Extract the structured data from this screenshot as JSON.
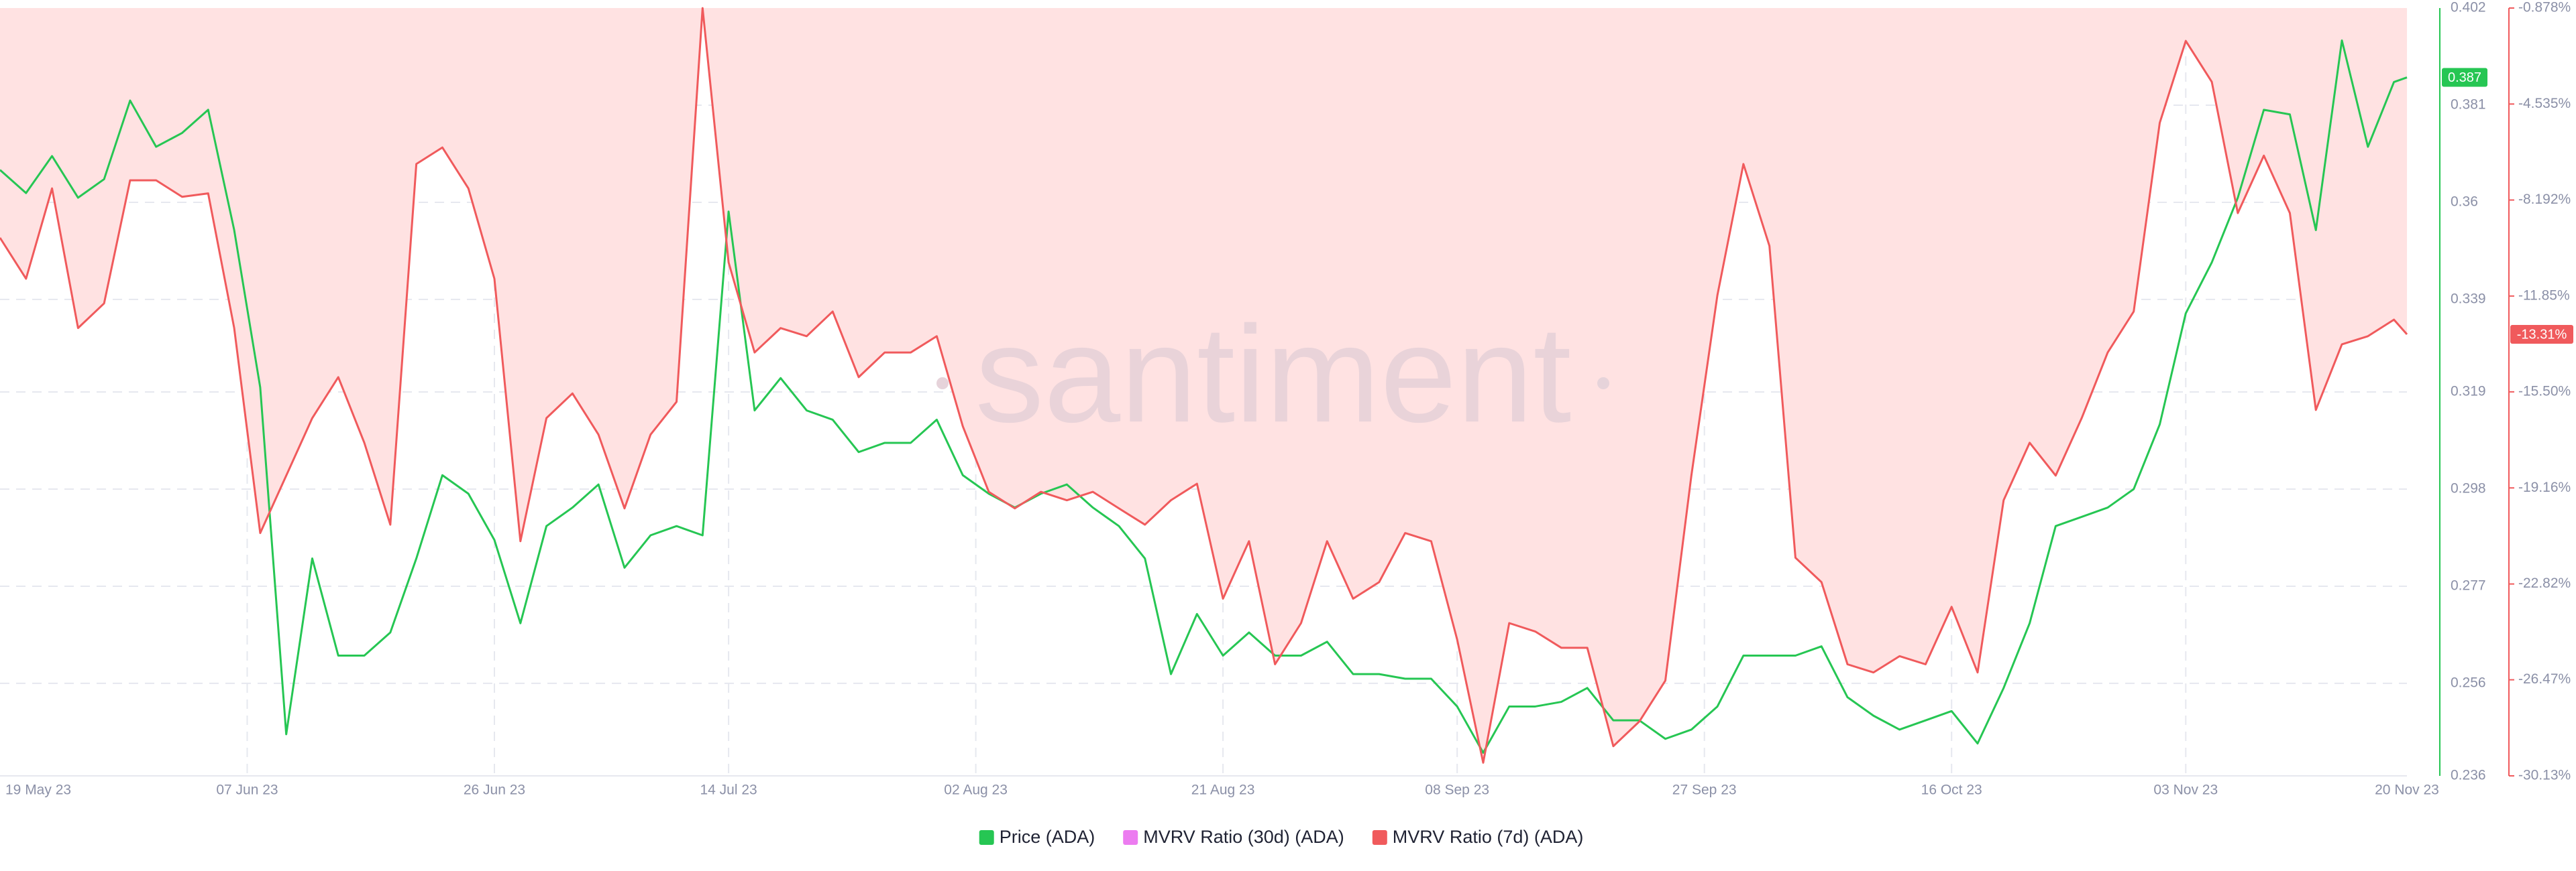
{
  "chart_data": {
    "type": "line",
    "watermark": "santiment",
    "x": [
      "2023-05-19",
      "2023-05-21",
      "2023-05-23",
      "2023-05-25",
      "2023-05-27",
      "2023-05-29",
      "2023-05-31",
      "2023-06-02",
      "2023-06-04",
      "2023-06-06",
      "2023-06-08",
      "2023-06-10",
      "2023-06-12",
      "2023-06-14",
      "2023-06-16",
      "2023-06-18",
      "2023-06-20",
      "2023-06-22",
      "2023-06-24",
      "2023-06-26",
      "2023-06-28",
      "2023-06-30",
      "2023-07-02",
      "2023-07-04",
      "2023-07-06",
      "2023-07-08",
      "2023-07-10",
      "2023-07-12",
      "2023-07-14",
      "2023-07-16",
      "2023-07-18",
      "2023-07-20",
      "2023-07-22",
      "2023-07-24",
      "2023-07-26",
      "2023-07-28",
      "2023-07-30",
      "2023-08-01",
      "2023-08-03",
      "2023-08-05",
      "2023-08-07",
      "2023-08-09",
      "2023-08-11",
      "2023-08-13",
      "2023-08-15",
      "2023-08-17",
      "2023-08-19",
      "2023-08-21",
      "2023-08-23",
      "2023-08-25",
      "2023-08-27",
      "2023-08-29",
      "2023-08-31",
      "2023-09-02",
      "2023-09-04",
      "2023-09-06",
      "2023-09-08",
      "2023-09-10",
      "2023-09-12",
      "2023-09-14",
      "2023-09-16",
      "2023-09-18",
      "2023-09-20",
      "2023-09-22",
      "2023-09-24",
      "2023-09-26",
      "2023-09-28",
      "2023-09-30",
      "2023-10-02",
      "2023-10-04",
      "2023-10-06",
      "2023-10-08",
      "2023-10-10",
      "2023-10-12",
      "2023-10-14",
      "2023-10-16",
      "2023-10-18",
      "2023-10-20",
      "2023-10-22",
      "2023-10-24",
      "2023-10-26",
      "2023-10-28",
      "2023-10-30",
      "2023-11-01",
      "2023-11-03",
      "2023-11-05",
      "2023-11-07",
      "2023-11-09",
      "2023-11-11",
      "2023-11-13",
      "2023-11-15",
      "2023-11-17",
      "2023-11-19",
      "2023-11-20"
    ],
    "xlim": [
      "2023-05-19",
      "2023-11-20"
    ],
    "xticks": [
      {
        "value": "2023-05-19",
        "label": "19 May 23"
      },
      {
        "value": "2023-06-07",
        "label": "07 Jun 23"
      },
      {
        "value": "2023-06-26",
        "label": "26 Jun 23"
      },
      {
        "value": "2023-07-14",
        "label": "14 Jul 23"
      },
      {
        "value": "2023-08-02",
        "label": "02 Aug 23"
      },
      {
        "value": "2023-08-21",
        "label": "21 Aug 23"
      },
      {
        "value": "2023-09-08",
        "label": "08 Sep 23"
      },
      {
        "value": "2023-09-27",
        "label": "27 Sep 23"
      },
      {
        "value": "2023-10-16",
        "label": "16 Oct 23"
      },
      {
        "value": "2023-11-03",
        "label": "03 Nov 23"
      },
      {
        "value": "2023-11-20",
        "label": "20 Nov 23"
      }
    ],
    "ylim": [
      0.236,
      0.402
    ],
    "yticks": [
      0.236,
      0.256,
      0.277,
      0.298,
      0.319,
      0.339,
      0.36,
      0.381,
      0.402
    ],
    "y_axis_color": "#26c653",
    "y2lim": [
      -30.13,
      -0.878
    ],
    "y2ticks": [
      {
        "value": -30.13,
        "label": "-30.13%"
      },
      {
        "value": -26.47,
        "label": "-26.47%"
      },
      {
        "value": -22.82,
        "label": "-22.82%"
      },
      {
        "value": -19.16,
        "label": "-19.16%"
      },
      {
        "value": -15.5,
        "label": "-15.50%"
      },
      {
        "value": -11.85,
        "label": "-11.85%"
      },
      {
        "value": -8.192,
        "label": "-8.192%"
      },
      {
        "value": -4.535,
        "label": "-4.535%"
      },
      {
        "value": -0.878,
        "label": "-0.878%"
      }
    ],
    "y2_axis_color": "#f05a5c",
    "grid": true,
    "legend": "bottom",
    "series": [
      {
        "name": "Price (ADA)",
        "color": "#26c653",
        "axis": "y",
        "last_label": "0.387",
        "values": [
          0.367,
          0.362,
          0.37,
          0.361,
          0.365,
          0.382,
          0.372,
          0.375,
          0.38,
          0.354,
          0.32,
          0.245,
          0.283,
          0.262,
          0.262,
          0.267,
          0.283,
          0.301,
          0.297,
          0.287,
          0.269,
          0.29,
          0.294,
          0.299,
          0.281,
          0.288,
          0.29,
          0.288,
          0.358,
          0.315,
          0.322,
          0.315,
          0.313,
          0.306,
          0.308,
          0.308,
          0.313,
          0.301,
          0.297,
          0.294,
          0.297,
          0.299,
          0.294,
          0.29,
          0.283,
          0.258,
          0.271,
          0.262,
          0.267,
          0.262,
          0.262,
          0.265,
          0.258,
          0.258,
          0.257,
          0.257,
          0.251,
          0.241,
          0.251,
          0.251,
          0.252,
          0.255,
          0.248,
          0.248,
          0.244,
          0.246,
          0.251,
          0.262,
          0.262,
          0.262,
          0.264,
          0.253,
          0.249,
          0.246,
          0.248,
          0.25,
          0.243,
          0.255,
          0.269,
          0.29,
          0.292,
          0.294,
          0.298,
          0.312,
          0.336,
          0.347,
          0.361,
          0.38,
          0.379,
          0.354,
          0.395,
          0.372,
          0.386,
          0.387
        ]
      },
      {
        "name": "MVRV Ratio (30d) (ADA)",
        "color": "#ec7cf0",
        "axis": "y2",
        "values": [
          null,
          null,
          null,
          null,
          null,
          null,
          null,
          null,
          null,
          null,
          null,
          null,
          null,
          null,
          null,
          null,
          null,
          null,
          null,
          null,
          null,
          null,
          null,
          null,
          null,
          null,
          null,
          null,
          null,
          null,
          null,
          null,
          null,
          null,
          null,
          null,
          null,
          null,
          null,
          null,
          null,
          null,
          null,
          null,
          null,
          null,
          null,
          null,
          null,
          null,
          null,
          null,
          null,
          null,
          null,
          null,
          null,
          null,
          null,
          null,
          null,
          null,
          null,
          null,
          null,
          null,
          null,
          null,
          null,
          null,
          null,
          null,
          null,
          null,
          null,
          null,
          null,
          null,
          null,
          null,
          null,
          null,
          null,
          null,
          null,
          null,
          null,
          null,
          null,
          null,
          null,
          null,
          null,
          null
        ]
      },
      {
        "name": "MVRV Ratio (7d) (ADA)",
        "color": "#f05a5c",
        "axis": "y2",
        "area": true,
        "area_color": "#ffe2e2",
        "last_label": "-13.31%",
        "values": [
          -9.63,
          -11.19,
          -7.75,
          -13.07,
          -12.13,
          -7.44,
          -7.44,
          -8.07,
          -7.94,
          -13.07,
          -20.88,
          -18.69,
          -16.5,
          -14.94,
          -17.44,
          -20.56,
          -6.82,
          -6.19,
          -7.75,
          -11.19,
          -21.19,
          -16.5,
          -15.56,
          -17.13,
          -19.94,
          -17.13,
          -15.88,
          -0.88,
          -10.57,
          -14.0,
          -13.07,
          -13.38,
          -12.44,
          -14.94,
          -14.0,
          -14.0,
          -13.38,
          -16.81,
          -19.31,
          -19.94,
          -19.31,
          -19.63,
          -19.31,
          -19.94,
          -20.56,
          -19.63,
          -19.0,
          -23.38,
          -21.19,
          -25.88,
          -24.31,
          -21.19,
          -23.38,
          -22.75,
          -20.88,
          -21.19,
          -24.94,
          -29.63,
          -24.31,
          -24.63,
          -25.25,
          -25.25,
          -29.0,
          -28.06,
          -26.5,
          -18.69,
          -11.82,
          -6.82,
          -9.94,
          -21.82,
          -22.75,
          -25.88,
          -26.19,
          -25.57,
          -25.88,
          -23.69,
          -26.19,
          -19.63,
          -17.44,
          -18.69,
          -16.5,
          -14.0,
          -12.44,
          -5.25,
          -2.13,
          -3.69,
          -8.69,
          -6.5,
          -8.69,
          -16.19,
          -13.69,
          -13.38,
          -12.75,
          -13.31
        ]
      }
    ]
  }
}
